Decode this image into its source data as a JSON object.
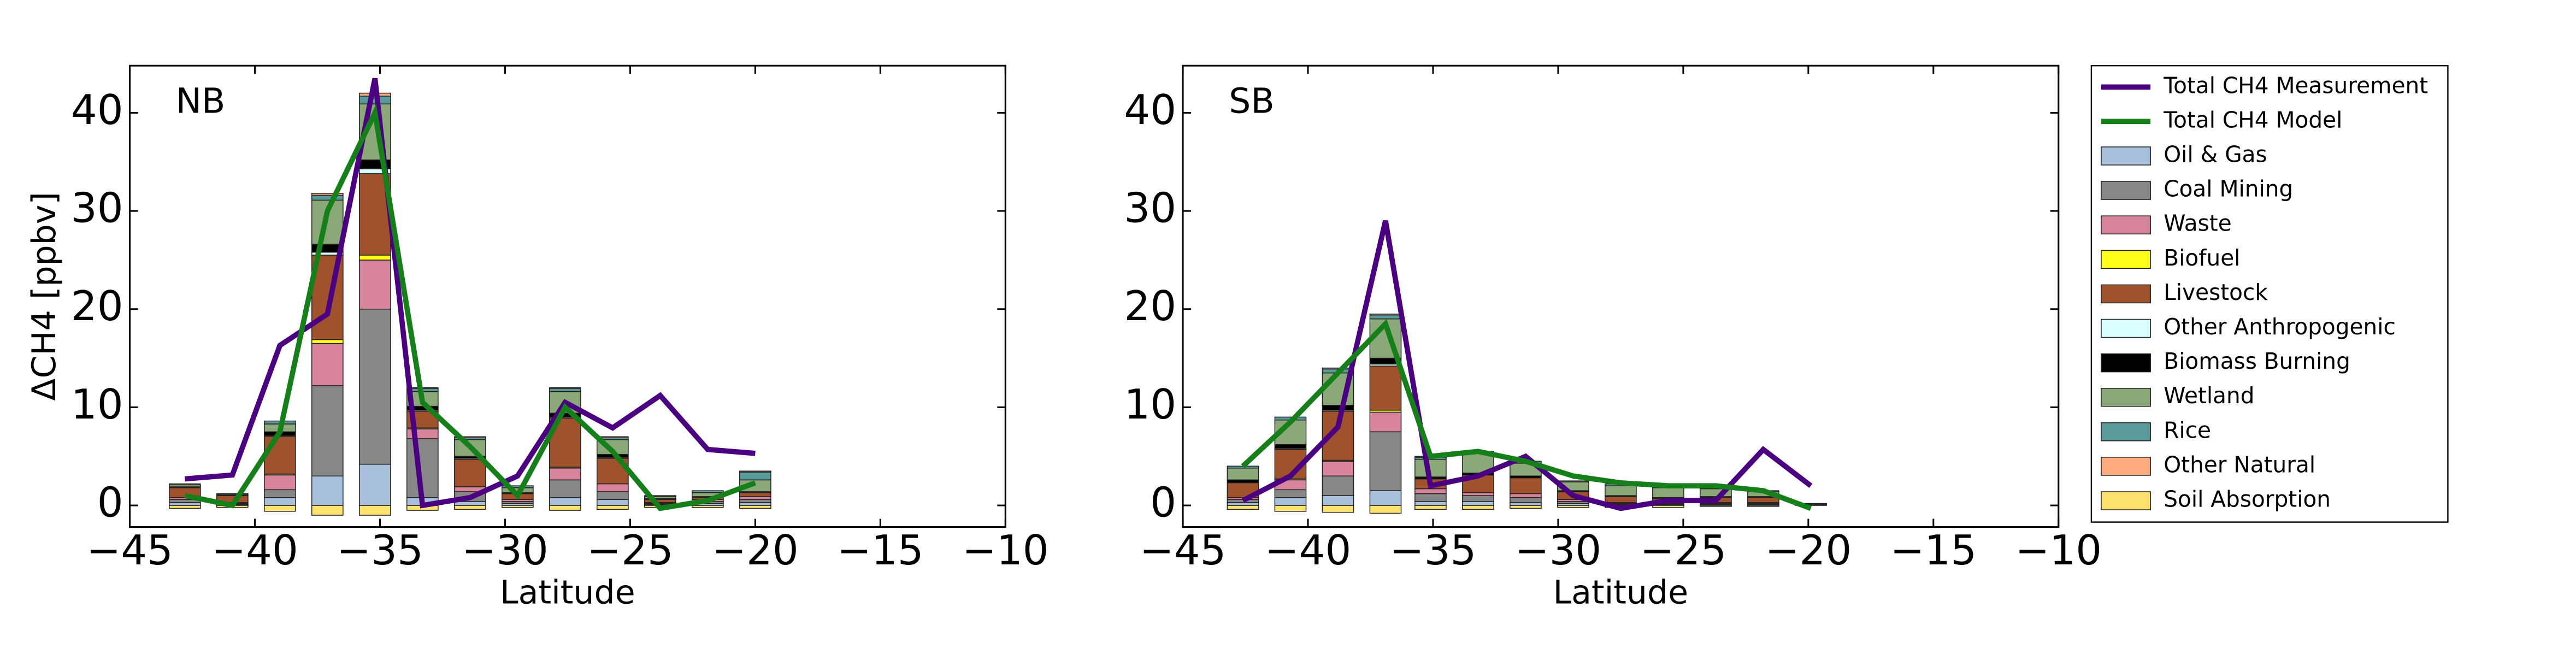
{
  "chart_data": [
    {
      "type": "bar",
      "stacked": true,
      "annotation": "NB",
      "xlabel": "Latitude",
      "ylabel": "ΔCH4 [ppbv]",
      "x": [
        -42.8,
        -40.9,
        -39.0,
        -37.1,
        -35.2,
        -33.3,
        -31.4,
        -29.5,
        -27.6,
        -25.7,
        -23.8,
        -21.9,
        -20.0
      ],
      "xlim": [
        -45,
        -10
      ],
      "ylim": [
        -2.2,
        44.8
      ],
      "xticks": [
        {
          "value": -45,
          "label": "−45"
        },
        {
          "value": -40,
          "label": "−40"
        },
        {
          "value": -35,
          "label": "−35"
        },
        {
          "value": -30,
          "label": "−30"
        },
        {
          "value": -25,
          "label": "−25"
        },
        {
          "value": -20,
          "label": "−20"
        },
        {
          "value": -15,
          "label": "−15"
        },
        {
          "value": -10,
          "label": "−10"
        }
      ],
      "yticks": [
        0,
        10,
        20,
        30,
        40
      ],
      "series": [
        {
          "name": "Total CH4 Measurement",
          "type": "line",
          "color": "#4b0082",
          "values": [
            2.7,
            3.1,
            16.3,
            19.5,
            43.5,
            0.0,
            0.8,
            3.0,
            10.5,
            7.9,
            11.2,
            5.7,
            5.3
          ]
        },
        {
          "name": "Total CH4 Model",
          "type": "line",
          "color": "#15801a",
          "values": [
            1.0,
            0.0,
            7.5,
            30.0,
            40.0,
            10.5,
            6.0,
            1.0,
            10.0,
            5.5,
            -0.3,
            0.5,
            2.3
          ]
        },
        {
          "name": "Oil & Gas",
          "color": "#a9c0dc",
          "values": [
            0.3,
            0.1,
            0.8,
            3.0,
            4.2,
            0.8,
            0.4,
            0.2,
            0.8,
            0.6,
            0.1,
            0.2,
            0.3
          ]
        },
        {
          "name": "Coal Mining",
          "color": "#878787",
          "values": [
            0.3,
            0.1,
            0.8,
            9.2,
            15.8,
            6.0,
            1.0,
            0.2,
            1.8,
            0.8,
            0.1,
            0.2,
            0.3
          ]
        },
        {
          "name": "Waste",
          "color": "#d8849c",
          "values": [
            0.2,
            0.1,
            1.5,
            4.3,
            5.0,
            1.0,
            0.5,
            0.2,
            1.2,
            0.8,
            0.1,
            0.2,
            0.3
          ]
        },
        {
          "name": "Biofuel",
          "color": "#ffff1a",
          "values": [
            0.0,
            0.0,
            0.1,
            0.4,
            0.5,
            0.1,
            0.0,
            0.0,
            0.1,
            0.0,
            0.0,
            0.0,
            0.0
          ]
        },
        {
          "name": "Livestock",
          "color": "#a0522d",
          "values": [
            1.0,
            0.7,
            3.8,
            8.6,
            8.3,
            1.7,
            2.8,
            0.6,
            5.0,
            2.6,
            0.3,
            0.2,
            0.4
          ]
        },
        {
          "name": "Other Anthropogenic",
          "color": "#d9ffff",
          "values": [
            0.0,
            0.0,
            0.1,
            0.3,
            0.5,
            0.1,
            0.1,
            0.0,
            0.1,
            0.1,
            0.0,
            0.0,
            0.0
          ]
        },
        {
          "name": "Biomass Burning",
          "color": "#000000",
          "values": [
            0.1,
            0.05,
            0.4,
            0.8,
            0.9,
            0.4,
            0.2,
            0.1,
            0.4,
            0.3,
            0.1,
            0.1,
            0.1
          ]
        },
        {
          "name": "Wetland",
          "color": "#8aa878",
          "values": [
            0.2,
            0.1,
            0.8,
            4.5,
            5.7,
            1.5,
            1.7,
            0.5,
            2.2,
            1.5,
            0.2,
            0.4,
            1.2
          ]
        },
        {
          "name": "Rice",
          "color": "#5a9a9a",
          "values": [
            0.1,
            0.05,
            0.3,
            0.5,
            0.8,
            0.3,
            0.2,
            0.2,
            0.3,
            0.2,
            0.1,
            0.2,
            0.8
          ]
        },
        {
          "name": "Other Natural",
          "color": "#ffab80",
          "values": [
            0.0,
            0.0,
            0.0,
            0.2,
            0.3,
            0.1,
            0.1,
            0.0,
            0.1,
            0.1,
            0.0,
            0.0,
            0.1
          ]
        },
        {
          "name": "Soil Absorption",
          "color": "#fde36e",
          "values": [
            -0.3,
            -0.2,
            -0.6,
            -1.0,
            -1.0,
            -0.5,
            -0.4,
            -0.2,
            -0.5,
            -0.4,
            -0.2,
            -0.2,
            -0.3
          ]
        }
      ]
    },
    {
      "type": "bar",
      "stacked": true,
      "annotation": "SB",
      "xlabel": "Latitude",
      "legend": "outside right",
      "x": [
        -42.6,
        -40.7,
        -38.8,
        -36.9,
        -35.1,
        -33.2,
        -31.3,
        -29.4,
        -27.5,
        -25.6,
        -23.7,
        -21.8,
        -19.9
      ],
      "xlim": [
        -45,
        -10
      ],
      "ylim": [
        -2.2,
        44.8
      ],
      "xticks": [
        {
          "value": -45,
          "label": "−45"
        },
        {
          "value": -40,
          "label": "−40"
        },
        {
          "value": -35,
          "label": "−35"
        },
        {
          "value": -30,
          "label": "−30"
        },
        {
          "value": -25,
          "label": "−25"
        },
        {
          "value": -20,
          "label": "−20"
        },
        {
          "value": -15,
          "label": "−15"
        },
        {
          "value": -10,
          "label": "−10"
        }
      ],
      "yticks": [
        0,
        10,
        20,
        30,
        40
      ],
      "series": [
        {
          "name": "Total CH4 Measurement",
          "type": "line",
          "color": "#4b0082",
          "values": [
            0.5,
            3.0,
            8.0,
            29.0,
            2.0,
            3.0,
            5.0,
            1.0,
            -0.3,
            0.5,
            0.5,
            5.7,
            2.0
          ]
        },
        {
          "name": "Total CH4 Model",
          "type": "line",
          "color": "#15801a",
          "values": [
            4.0,
            8.5,
            13.5,
            18.5,
            5.0,
            5.5,
            4.5,
            3.0,
            2.3,
            2.0,
            2.0,
            1.5,
            -0.3
          ]
        },
        {
          "name": "Oil & Gas",
          "color": "#a9c0dc",
          "values": [
            0.3,
            0.8,
            1.0,
            1.5,
            0.4,
            0.4,
            0.3,
            0.2,
            0.1,
            0.1,
            0.1,
            0.1,
            0.0
          ]
        },
        {
          "name": "Coal Mining",
          "color": "#878787",
          "values": [
            0.3,
            0.8,
            2.0,
            6.0,
            0.8,
            0.6,
            0.5,
            0.2,
            0.1,
            0.1,
            0.1,
            0.1,
            0.0
          ]
        },
        {
          "name": "Waste",
          "color": "#d8849c",
          "values": [
            0.2,
            1.0,
            1.5,
            2.0,
            0.5,
            0.3,
            0.4,
            0.2,
            0.1,
            0.1,
            0.1,
            0.1,
            0.0
          ]
        },
        {
          "name": "Biofuel",
          "color": "#ffff1a",
          "values": [
            0.0,
            0.1,
            0.1,
            0.2,
            0.0,
            0.0,
            0.0,
            0.0,
            0.0,
            0.0,
            0.0,
            0.0,
            0.0
          ]
        },
        {
          "name": "Livestock",
          "color": "#a0522d",
          "values": [
            1.5,
            3.0,
            5.0,
            4.5,
            1.0,
            1.8,
            1.6,
            0.8,
            0.6,
            0.4,
            0.5,
            0.5,
            0.1
          ]
        },
        {
          "name": "Other Anthropogenic",
          "color": "#d9ffff",
          "values": [
            0.0,
            0.1,
            0.1,
            0.2,
            0.0,
            0.0,
            0.0,
            0.0,
            0.0,
            0.0,
            0.0,
            0.0,
            0.0
          ]
        },
        {
          "name": "Biomass Burning",
          "color": "#000000",
          "values": [
            0.3,
            0.4,
            0.5,
            0.6,
            0.2,
            0.2,
            0.2,
            0.1,
            0.1,
            0.1,
            0.1,
            0.1,
            0.0
          ]
        },
        {
          "name": "Wetland",
          "color": "#8aa878",
          "values": [
            1.2,
            2.5,
            3.3,
            4.0,
            1.8,
            2.0,
            1.3,
            0.9,
            1.0,
            1.0,
            0.8,
            0.5,
            0.1
          ]
        },
        {
          "name": "Rice",
          "color": "#5a9a9a",
          "values": [
            0.2,
            0.3,
            0.4,
            0.4,
            0.2,
            0.2,
            0.2,
            0.1,
            0.2,
            0.2,
            0.1,
            0.1,
            0.0
          ]
        },
        {
          "name": "Other Natural",
          "color": "#ffab80",
          "values": [
            0.0,
            0.0,
            0.1,
            0.1,
            0.1,
            0.0,
            0.0,
            0.0,
            0.0,
            0.0,
            0.0,
            0.0,
            0.0
          ]
        },
        {
          "name": "Soil Absorption",
          "color": "#fde36e",
          "values": [
            -0.4,
            -0.6,
            -0.7,
            -0.8,
            -0.4,
            -0.4,
            -0.3,
            -0.2,
            -0.2,
            -0.2,
            -0.1,
            -0.1,
            0.0
          ]
        }
      ]
    }
  ]
}
